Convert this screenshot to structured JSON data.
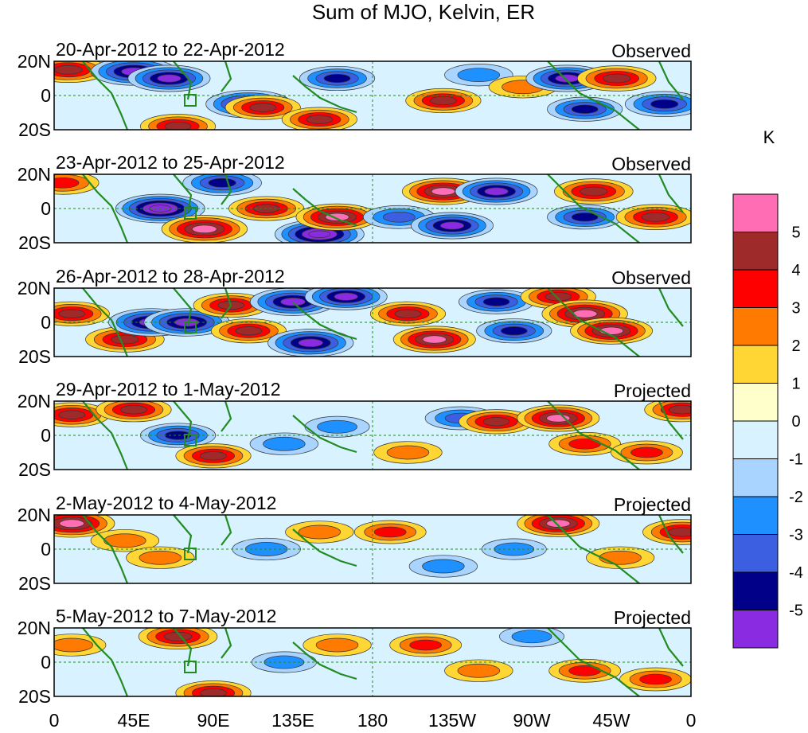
{
  "chart_data": {
    "type": "heatmap",
    "title": "Sum of MJO, Kelvin, ER",
    "units": "K",
    "x_ticks": [
      "0",
      "45E",
      "90E",
      "135E",
      "180",
      "135W",
      "90W",
      "45W",
      "0"
    ],
    "y_ticks": [
      "20N",
      "0",
      "20S"
    ],
    "lon_range": [
      0,
      360
    ],
    "lat_range": [
      -20,
      20
    ],
    "colorbar": {
      "labels": [
        "5",
        "4",
        "3",
        "2",
        "1",
        "0",
        "-1",
        "-2",
        "-3",
        "-4",
        "-5"
      ],
      "colors": [
        "#ff6eb4",
        "#9e2a2a",
        "#ff0000",
        "#ff7a00",
        "#ffd633",
        "#ffffcc",
        "#d8f2ff",
        "#a8d4ff",
        "#1e90ff",
        "#3c5ee0",
        "#000088",
        "#8a2be2"
      ]
    },
    "panels": [
      {
        "date_range": "20-Apr-2012 to 22-Apr-2012",
        "label": "Observed",
        "blobs": [
          [
            8,
            15,
            0.7
          ],
          [
            45,
            14,
            -0.9
          ],
          [
            65,
            10,
            -0.8
          ],
          [
            70,
            -18,
            0.6
          ],
          [
            110,
            -5,
            -0.9
          ],
          [
            118,
            -7,
            0.6
          ],
          [
            150,
            -14,
            0.6
          ],
          [
            160,
            10,
            -0.6
          ],
          [
            220,
            -3,
            0.6
          ],
          [
            240,
            12,
            -0.4
          ],
          [
            265,
            5,
            0.4
          ],
          [
            290,
            10,
            -0.8
          ],
          [
            300,
            -8,
            -0.6
          ],
          [
            318,
            10,
            0.7
          ],
          [
            345,
            -5,
            -0.7
          ]
        ]
      },
      {
        "date_range": "23-Apr-2012 to 25-Apr-2012",
        "label": "Observed",
        "blobs": [
          [
            5,
            15,
            0.5
          ],
          [
            60,
            0,
            -1.0
          ],
          [
            85,
            -12,
            0.9
          ],
          [
            95,
            15,
            -0.7
          ],
          [
            120,
            0,
            0.6
          ],
          [
            150,
            -15,
            -1.0
          ],
          [
            160,
            -5,
            0.8
          ],
          [
            195,
            -5,
            -0.5
          ],
          [
            220,
            10,
            0.8
          ],
          [
            225,
            -10,
            -0.8
          ],
          [
            250,
            10,
            -0.8
          ],
          [
            305,
            10,
            0.7
          ],
          [
            300,
            -5,
            -0.6
          ],
          [
            340,
            -5,
            0.7
          ]
        ]
      },
      {
        "date_range": "26-Apr-2012 to 28-Apr-2012",
        "label": "Observed",
        "blobs": [
          [
            10,
            5,
            0.6
          ],
          [
            40,
            -10,
            0.7
          ],
          [
            55,
            0,
            -0.9
          ],
          [
            75,
            0,
            -0.9
          ],
          [
            100,
            10,
            0.6
          ],
          [
            110,
            -5,
            0.6
          ],
          [
            135,
            12,
            -0.9
          ],
          [
            145,
            -12,
            -0.9
          ],
          [
            165,
            15,
            -0.8
          ],
          [
            200,
            5,
            0.6
          ],
          [
            215,
            -10,
            0.8
          ],
          [
            250,
            12,
            -0.6
          ],
          [
            260,
            -5,
            -0.6
          ],
          [
            285,
            15,
            0.6
          ],
          [
            300,
            5,
            0.9
          ],
          [
            315,
            -5,
            0.8
          ]
        ]
      },
      {
        "date_range": "29-Apr-2012 to 1-May-2012",
        "label": "Projected",
        "blobs": [
          [
            10,
            12,
            0.6
          ],
          [
            45,
            15,
            0.6
          ],
          [
            70,
            0,
            -0.6
          ],
          [
            90,
            -12,
            0.6
          ],
          [
            130,
            -5,
            -0.4
          ],
          [
            160,
            5,
            -0.3
          ],
          [
            200,
            -10,
            0.4
          ],
          [
            230,
            10,
            -0.5
          ],
          [
            250,
            8,
            0.6
          ],
          [
            285,
            10,
            0.8
          ],
          [
            300,
            -5,
            0.5
          ],
          [
            335,
            -10,
            0.5
          ],
          [
            355,
            15,
            0.6
          ]
        ]
      },
      {
        "date_range": "2-May-2012 to 4-May-2012",
        "label": "Projected",
        "blobs": [
          [
            10,
            15,
            0.9
          ],
          [
            40,
            5,
            0.4
          ],
          [
            60,
            -5,
            0.4
          ],
          [
            120,
            0,
            -0.4
          ],
          [
            150,
            10,
            0.4
          ],
          [
            190,
            10,
            0.5
          ],
          [
            220,
            -10,
            -0.4
          ],
          [
            260,
            0,
            -0.3
          ],
          [
            285,
            15,
            0.8
          ],
          [
            320,
            -5,
            0.4
          ],
          [
            355,
            10,
            0.7
          ]
        ]
      },
      {
        "date_range": "5-May-2012 to 7-May-2012",
        "label": "Projected",
        "blobs": [
          [
            10,
            10,
            0.4
          ],
          [
            70,
            15,
            0.7
          ],
          [
            90,
            -18,
            0.6
          ],
          [
            130,
            0,
            -0.3
          ],
          [
            160,
            10,
            0.4
          ],
          [
            210,
            10,
            0.5
          ],
          [
            240,
            -5,
            0.4
          ],
          [
            270,
            15,
            -0.3
          ],
          [
            300,
            -5,
            0.5
          ],
          [
            340,
            -10,
            0.5
          ]
        ]
      }
    ]
  }
}
